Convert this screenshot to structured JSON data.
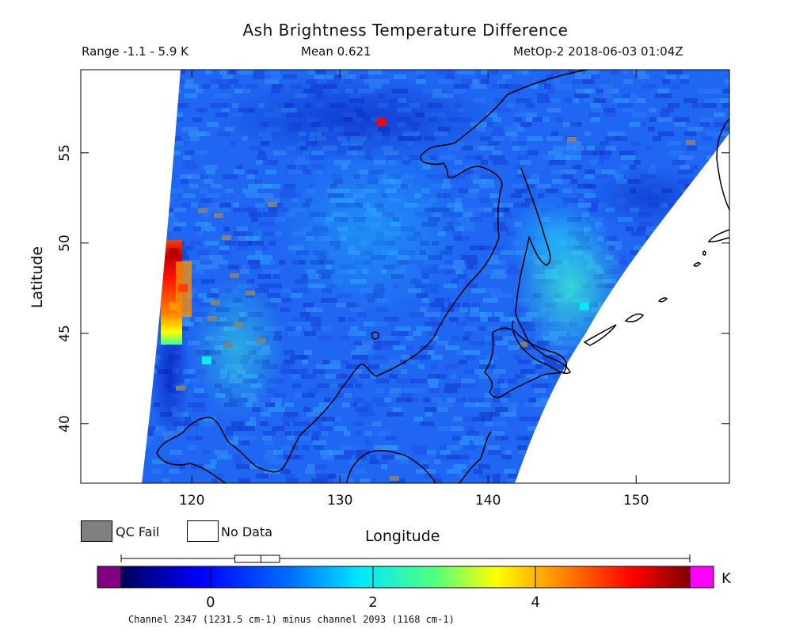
{
  "title": "Ash Brightness Temperature Difference",
  "header": {
    "range": "Range -1.1 - 5.9 K",
    "mean": "Mean 0.621",
    "satellite": "MetOp-2 2018-06-03 01:04Z"
  },
  "colors": {
    "qc_fail": "#808080",
    "no_data": "#ffffff",
    "under_range": "#800080",
    "over_range": "#ff00ff",
    "coastline": "#000000"
  },
  "chart_data": {
    "type": "heatmap",
    "title": "Ash Brightness Temperature Difference",
    "xlabel": "Longitude",
    "ylabel": "Latitude",
    "xlim": [
      112.5,
      156.3
    ],
    "ylim": [
      36.7,
      59.6
    ],
    "x_ticks": [
      {
        "value": 120,
        "label": "120"
      },
      {
        "value": 130,
        "label": "130"
      },
      {
        "value": 140,
        "label": "140"
      },
      {
        "value": 150,
        "label": "150"
      }
    ],
    "y_ticks": [
      {
        "value": 40,
        "label": "40"
      },
      {
        "value": 45,
        "label": "45"
      },
      {
        "value": 50,
        "label": "50"
      },
      {
        "value": 55,
        "label": "55"
      }
    ],
    "colorbar": {
      "min": -1.1,
      "max": 5.9,
      "unit": "K",
      "ticks": [
        {
          "value": 0,
          "label": "0"
        },
        {
          "value": 2,
          "label": "2"
        },
        {
          "value": 4,
          "label": "4"
        }
      ],
      "caption": "Channel 2347 (1231.5 cm-1) minus channel 2093 (1168 cm-1)"
    },
    "boxplot": {
      "min": -1.1,
      "q1": 0.3,
      "median": 0.62,
      "q3": 0.85,
      "max": 5.9
    },
    "legend": [
      {
        "label": "QC Fail",
        "color": "#808080"
      },
      {
        "label": "No Data",
        "color": "#ffffff"
      }
    ],
    "hotspots": [
      {
        "lon": 118.8,
        "lat": 49.5,
        "value": 5.6
      },
      {
        "lon": 119.4,
        "lat": 47.5,
        "value": 4.8
      },
      {
        "lon": 118.8,
        "lat": 46.5,
        "value": 4.2
      },
      {
        "lon": 121.0,
        "lat": 43.5,
        "value": 2.0
      },
      {
        "lon": 146.5,
        "lat": 46.5,
        "value": 1.9
      },
      {
        "lon": 132.8,
        "lat": 56.7,
        "value": 5.2
      }
    ]
  }
}
